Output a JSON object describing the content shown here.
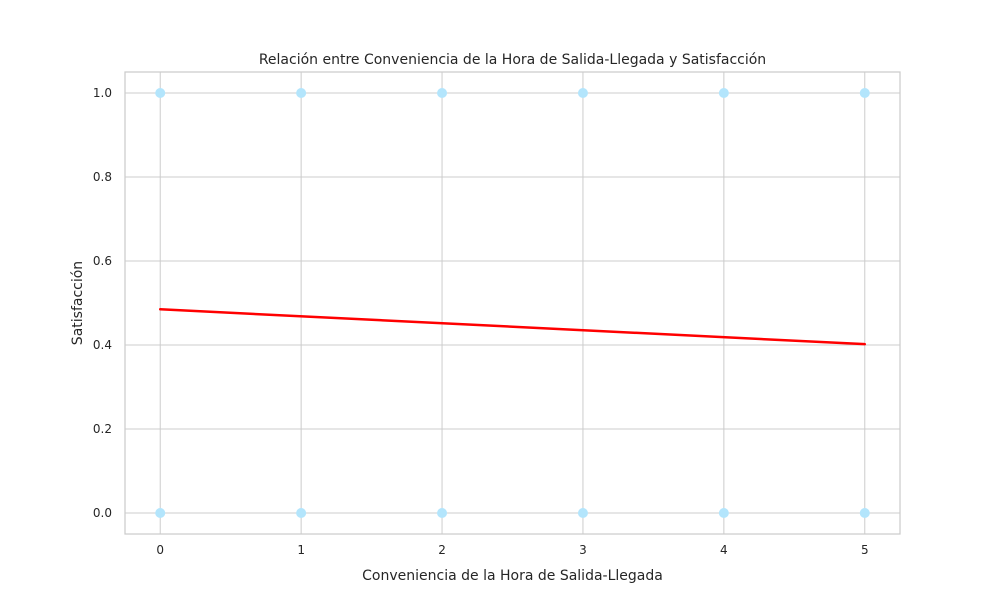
{
  "chart_data": {
    "type": "scatter",
    "title": "Relación entre Conveniencia de la Hora de Salida-Llegada y Satisfacción",
    "xlabel": "Conveniencia de la Hora de Salida-Llegada",
    "ylabel": "Satisfacción",
    "xlim": [
      -0.25,
      5.25
    ],
    "ylim": [
      -0.05,
      1.05
    ],
    "xticks": [
      0,
      1,
      2,
      3,
      4,
      5
    ],
    "xtick_labels": [
      "0",
      "1",
      "2",
      "3",
      "4",
      "5"
    ],
    "yticks": [
      0.0,
      0.2,
      0.4,
      0.6,
      0.8,
      1.0
    ],
    "ytick_labels": [
      "0.0",
      "0.2",
      "0.4",
      "0.6",
      "0.8",
      "1.0"
    ],
    "grid": true,
    "legend": "none",
    "points": [
      {
        "x": 0,
        "y": 1
      },
      {
        "x": 1,
        "y": 1
      },
      {
        "x": 2,
        "y": 1
      },
      {
        "x": 3,
        "y": 1
      },
      {
        "x": 4,
        "y": 1
      },
      {
        "x": 5,
        "y": 1
      },
      {
        "x": 0,
        "y": 0
      },
      {
        "x": 1,
        "y": 0
      },
      {
        "x": 2,
        "y": 0
      },
      {
        "x": 3,
        "y": 0
      },
      {
        "x": 4,
        "y": 0
      },
      {
        "x": 5,
        "y": 0
      }
    ],
    "trend_line": {
      "x": [
        0,
        5
      ],
      "y": [
        0.485,
        0.402
      ]
    },
    "colors": {
      "points": "#b3e5fc",
      "trend_line": "#ff0000",
      "grid": "#cccccc",
      "frame": "#cccccc"
    }
  }
}
